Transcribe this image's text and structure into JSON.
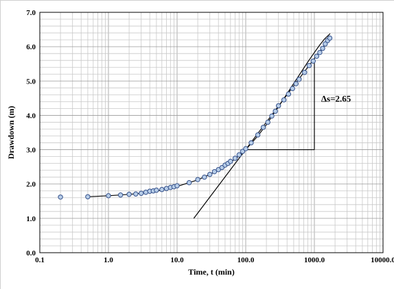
{
  "chart_data": {
    "type": "scatter",
    "title": "",
    "xlabel": "Time, t (min)",
    "ylabel": "Drawdown (m)",
    "xscale": "log",
    "xlim": [
      0.1,
      10000
    ],
    "ylim": [
      0,
      7
    ],
    "grid": true,
    "x_tick_labels": [
      "0.1",
      "1.0",
      "10.0",
      "100.0",
      "1000.0",
      "10000.0"
    ],
    "x_tick_values": [
      0.1,
      1,
      10,
      100,
      1000,
      10000
    ],
    "y_tick_labels": [
      "0.0",
      "1.0",
      "2.0",
      "3.0",
      "4.0",
      "5.0",
      "6.0",
      "7.0"
    ],
    "y_tick_values": [
      0,
      1,
      2,
      3,
      4,
      5,
      6,
      7
    ],
    "series": [
      {
        "marker": "circle",
        "color": "#5b8bd0",
        "x": [
          0.2,
          0.5,
          1,
          1.5,
          2,
          2.5,
          3,
          3.5,
          4,
          4.5,
          5,
          6,
          7,
          8,
          9,
          10,
          15,
          20,
          25,
          30,
          35,
          40,
          45,
          50,
          55,
          60,
          70,
          80,
          90,
          100,
          120,
          150,
          180,
          210,
          240,
          270,
          300,
          360,
          420,
          480,
          540,
          600,
          720,
          840,
          960,
          1080,
          1200,
          1320,
          1440,
          1560,
          1680
        ],
        "y": [
          1.62,
          1.63,
          1.66,
          1.68,
          1.7,
          1.71,
          1.73,
          1.76,
          1.79,
          1.8,
          1.82,
          1.84,
          1.87,
          1.9,
          1.92,
          1.95,
          2.04,
          2.13,
          2.2,
          2.28,
          2.36,
          2.42,
          2.48,
          2.55,
          2.6,
          2.66,
          2.75,
          2.85,
          2.95,
          3.03,
          3.2,
          3.43,
          3.65,
          3.8,
          3.98,
          4.12,
          4.28,
          4.45,
          4.62,
          4.78,
          4.92,
          5.05,
          5.25,
          5.45,
          5.58,
          5.72,
          5.83,
          5.95,
          6.08,
          6.18,
          6.25
        ]
      }
    ],
    "fit_curve": {
      "x": [
        0.5,
        1,
        2,
        3,
        5,
        7,
        10,
        15,
        20,
        30,
        40,
        50,
        60,
        80,
        100,
        150,
        200,
        300,
        400,
        500,
        600,
        800,
        1000,
        1200,
        1400,
        1700
      ],
      "y": [
        1.63,
        1.66,
        1.7,
        1.73,
        1.79,
        1.85,
        1.93,
        2.04,
        2.12,
        2.28,
        2.41,
        2.53,
        2.63,
        2.82,
        3.0,
        3.4,
        3.73,
        4.25,
        4.63,
        4.93,
        5.17,
        5.55,
        5.83,
        6.05,
        6.22,
        6.38
      ]
    },
    "straight_line": {
      "x": [
        17.5,
        1750
      ],
      "y": [
        1.0,
        6.3
      ]
    },
    "slope_triangle": {
      "x1": 100,
      "x2": 1000,
      "y_bottom": 3.0,
      "y_top": 5.65
    },
    "annotations": [
      {
        "text": "Δs=2.65",
        "x": 1200,
        "y": 4.5
      }
    ]
  }
}
